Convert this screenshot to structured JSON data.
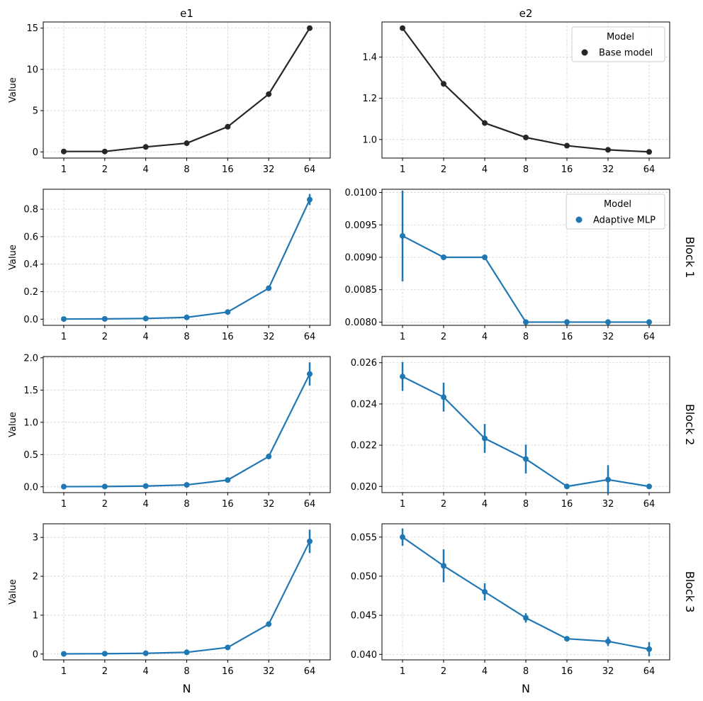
{
  "figure": {
    "shared_x_label": "N",
    "row_labels": [
      "",
      "Block 1",
      "Block 2",
      "Block 3"
    ],
    "column_titles": [
      "e1",
      "e2"
    ],
    "legends": [
      {
        "title": "Model",
        "label": "Base model",
        "color": "#262626"
      },
      {
        "title": "Model",
        "label": "Adaptive MLP",
        "color": "#1f77b4"
      }
    ]
  },
  "chart_data": [
    {
      "type": "line",
      "title": "e1",
      "row": 0,
      "col": 0,
      "color": "#262626",
      "categories": [
        "1",
        "2",
        "4",
        "8",
        "16",
        "32",
        "64"
      ],
      "values": [
        0.05,
        0.05,
        0.6,
        1.05,
        3.05,
        7.0,
        15.0
      ],
      "err": [
        0,
        0,
        0,
        0,
        0,
        0,
        0
      ],
      "ylim": [
        -0.75,
        15.75
      ],
      "yticks": [
        0,
        5,
        10,
        15
      ],
      "ytick_labels": [
        "0",
        "5",
        "10",
        "15"
      ],
      "ylabel": "Value",
      "xlabel": ""
    },
    {
      "type": "line",
      "title": "e2",
      "row": 0,
      "col": 1,
      "color": "#262626",
      "categories": [
        "1",
        "2",
        "4",
        "8",
        "16",
        "32",
        "64"
      ],
      "values": [
        1.54,
        1.27,
        1.08,
        1.01,
        0.97,
        0.95,
        0.94
      ],
      "err": [
        0,
        0,
        0,
        0,
        0,
        0,
        0
      ],
      "ylim": [
        0.91,
        1.57
      ],
      "yticks": [
        1.0,
        1.2,
        1.4
      ],
      "ytick_labels": [
        "1.0",
        "1.2",
        "1.4"
      ],
      "ylabel": "",
      "xlabel": "",
      "legend": 0
    },
    {
      "type": "line",
      "title": "",
      "row": 1,
      "col": 0,
      "color": "#1f77b4",
      "categories": [
        "1",
        "2",
        "4",
        "8",
        "16",
        "32",
        "64"
      ],
      "values": [
        0.001,
        0.002,
        0.005,
        0.013,
        0.052,
        0.225,
        0.87
      ],
      "err": [
        0,
        0,
        0,
        0,
        0.005,
        0.01,
        0.04
      ],
      "ylim": [
        -0.045,
        0.945
      ],
      "yticks": [
        0,
        0.2,
        0.4,
        0.6,
        0.8
      ],
      "ytick_labels": [
        "0.0",
        "0.2",
        "0.4",
        "0.6",
        "0.8"
      ],
      "ylabel": "Value",
      "xlabel": ""
    },
    {
      "type": "line",
      "title": "",
      "row": 1,
      "col": 1,
      "color": "#1f77b4",
      "categories": [
        "1",
        "2",
        "4",
        "8",
        "16",
        "32",
        "64"
      ],
      "values": [
        0.00933,
        0.009,
        0.009,
        0.008,
        0.008,
        0.008,
        0.008
      ],
      "err": [
        0.0007,
        0,
        0,
        0,
        0,
        0,
        0
      ],
      "ylim": [
        0.00795,
        0.01005
      ],
      "yticks": [
        0.008,
        0.0085,
        0.009,
        0.0095,
        0.01
      ],
      "ytick_labels": [
        "0.0080",
        "0.0085",
        "0.0090",
        "0.0095",
        "0.0100"
      ],
      "ylabel": "",
      "xlabel": "",
      "legend": 1,
      "row_label": "Block 1"
    },
    {
      "type": "line",
      "title": "",
      "row": 2,
      "col": 0,
      "color": "#1f77b4",
      "categories": [
        "1",
        "2",
        "4",
        "8",
        "16",
        "32",
        "64"
      ],
      "values": [
        0.003,
        0.005,
        0.012,
        0.03,
        0.105,
        0.47,
        1.75
      ],
      "err": [
        0,
        0,
        0,
        0,
        0.01,
        0.02,
        0.18
      ],
      "ylim": [
        -0.09,
        2.02
      ],
      "yticks": [
        0,
        0.5,
        1.0,
        1.5,
        2.0
      ],
      "ytick_labels": [
        "0.0",
        "0.5",
        "1.0",
        "1.5",
        "2.0"
      ],
      "ylabel": "Value",
      "xlabel": "",
      "row_label": "Block 2"
    },
    {
      "type": "line",
      "title": "",
      "row": 2,
      "col": 1,
      "color": "#1f77b4",
      "categories": [
        "1",
        "2",
        "4",
        "8",
        "16",
        "32",
        "64"
      ],
      "values": [
        0.02533,
        0.02433,
        0.02233,
        0.02133,
        0.02,
        0.02033,
        0.02
      ],
      "err": [
        0.0007,
        0.0007,
        0.0007,
        0.0007,
        0,
        0.0007,
        0
      ],
      "ylim": [
        0.0197,
        0.0263
      ],
      "yticks": [
        0.02,
        0.022,
        0.024,
        0.026
      ],
      "ytick_labels": [
        "0.020",
        "0.022",
        "0.024",
        "0.026"
      ],
      "ylabel": "",
      "xlabel": ""
    },
    {
      "type": "line",
      "title": "",
      "row": 3,
      "col": 0,
      "color": "#1f77b4",
      "categories": [
        "1",
        "2",
        "4",
        "8",
        "16",
        "32",
        "64"
      ],
      "values": [
        0.005,
        0.01,
        0.02,
        0.045,
        0.17,
        0.77,
        2.9
      ],
      "err": [
        0,
        0,
        0,
        0,
        0.02,
        0.03,
        0.3
      ],
      "ylim": [
        -0.15,
        3.35
      ],
      "yticks": [
        0,
        1,
        2,
        3
      ],
      "ytick_labels": [
        "0",
        "1",
        "2",
        "3"
      ],
      "ylabel": "Value",
      "xlabel": "N",
      "row_label": "Block 3"
    },
    {
      "type": "line",
      "title": "",
      "row": 3,
      "col": 1,
      "color": "#1f77b4",
      "categories": [
        "1",
        "2",
        "4",
        "8",
        "16",
        "32",
        "64"
      ],
      "values": [
        0.055,
        0.05133,
        0.048,
        0.04467,
        0.042,
        0.04167,
        0.04067
      ],
      "err": [
        0.0011,
        0.0021,
        0.0011,
        0.0006,
        0,
        0.0006,
        0.0009
      ],
      "ylim": [
        0.0393,
        0.0567
      ],
      "yticks": [
        0.04,
        0.045,
        0.05,
        0.055
      ],
      "ytick_labels": [
        "0.040",
        "0.045",
        "0.050",
        "0.055"
      ],
      "ylabel": "",
      "xlabel": "N"
    }
  ]
}
